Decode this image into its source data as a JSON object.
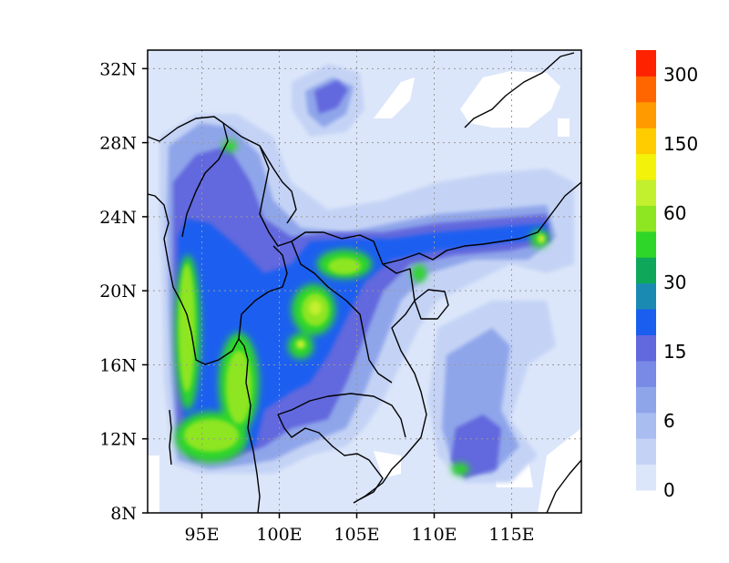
{
  "chart_data": {
    "type": "heatmap",
    "title": "",
    "xlabel": "",
    "ylabel": "",
    "xlim": [
      91.5,
      119.5
    ],
    "ylim": [
      8,
      33
    ],
    "x_ticks": [
      {
        "value": 95,
        "label": "95E"
      },
      {
        "value": 100,
        "label": "100E"
      },
      {
        "value": 105,
        "label": "105E"
      },
      {
        "value": 110,
        "label": "110E"
      },
      {
        "value": 115,
        "label": "115E"
      }
    ],
    "y_ticks": [
      {
        "value": 8,
        "label": "8N"
      },
      {
        "value": 12,
        "label": "12N"
      },
      {
        "value": 16,
        "label": "16N"
      },
      {
        "value": 20,
        "label": "20N"
      },
      {
        "value": 24,
        "label": "24N"
      },
      {
        "value": 28,
        "label": "28N"
      },
      {
        "value": 32,
        "label": "32N"
      }
    ],
    "grid": true,
    "colorbar": {
      "levels": [
        "0",
        "6",
        "15",
        "30",
        "60",
        "150",
        "300"
      ],
      "colors": [
        "#dce6fa",
        "#c4d3f5",
        "#a9bdf0",
        "#8fa5ea",
        "#7989e6",
        "#6268dd",
        "#1a5ef0",
        "#1b8ab3",
        "#0fa85a",
        "#2fd62a",
        "#8ee522",
        "#c2ef2e",
        "#f2f20a",
        "#ffcc00",
        "#ff9a00",
        "#ff6600",
        "#ff2200"
      ]
    },
    "precip_regions": [
      {
        "lon": 93.8,
        "lat": 16.5,
        "rx": 1.8,
        "ry": 5.5,
        "level": 10
      },
      {
        "lon": 95.4,
        "lat": 11.5,
        "rx": 2.8,
        "ry": 1.8,
        "level": 10
      },
      {
        "lon": 96.8,
        "lat": 14.0,
        "rx": 1.2,
        "ry": 3.0,
        "level": 9
      },
      {
        "lon": 102.2,
        "lat": 18.8,
        "rx": 1.3,
        "ry": 1.2,
        "level": 11
      },
      {
        "lon": 101.4,
        "lat": 17.2,
        "rx": 0.6,
        "ry": 0.6,
        "level": 12
      },
      {
        "lon": 103.6,
        "lat": 21.4,
        "rx": 1.6,
        "ry": 0.9,
        "level": 10
      },
      {
        "lon": 116.8,
        "lat": 23.2,
        "rx": 0.5,
        "ry": 0.5,
        "level": 11
      },
      {
        "lon": 111.9,
        "lat": 10.5,
        "rx": 0.6,
        "ry": 0.4,
        "level": 9
      },
      {
        "lon": 97.4,
        "lat": 27.5,
        "rx": 0.5,
        "ry": 0.4,
        "level": 9
      }
    ]
  }
}
